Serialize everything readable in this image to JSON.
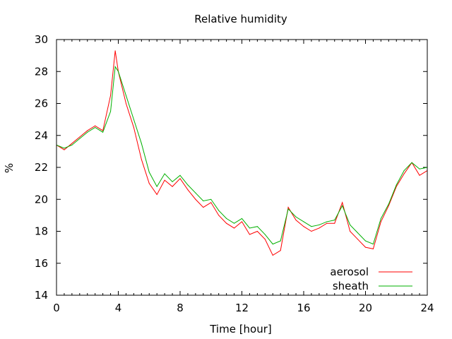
{
  "chart_data": {
    "type": "line",
    "title": "Relative humidity",
    "xlabel": "Time [hour]",
    "ylabel": "%",
    "xlim": [
      0,
      24
    ],
    "ylim": [
      14,
      30
    ],
    "xticks": [
      0,
      4,
      8,
      12,
      16,
      20,
      24
    ],
    "yticks": [
      14,
      16,
      18,
      20,
      22,
      24,
      26,
      28,
      30
    ],
    "grid": false,
    "legend": "bottom-right",
    "x": [
      0.0,
      0.5,
      1.0,
      1.5,
      2.0,
      2.5,
      3.0,
      3.5,
      3.8,
      4.0,
      4.5,
      5.0,
      5.5,
      6.0,
      6.5,
      7.0,
      7.5,
      8.0,
      8.5,
      9.0,
      9.5,
      10.0,
      10.5,
      11.0,
      11.5,
      12.0,
      12.5,
      13.0,
      13.5,
      14.0,
      14.5,
      15.0,
      15.5,
      16.0,
      16.5,
      17.0,
      17.5,
      18.0,
      18.5,
      19.0,
      19.5,
      20.0,
      20.5,
      21.0,
      21.5,
      22.0,
      22.5,
      23.0,
      23.5,
      24.0
    ],
    "series": [
      {
        "name": "aerosol",
        "color": "#ff0000",
        "values": [
          23.4,
          23.1,
          23.5,
          23.9,
          24.3,
          24.6,
          24.3,
          26.5,
          29.3,
          28.0,
          26.0,
          24.5,
          22.5,
          21.0,
          20.3,
          21.2,
          20.8,
          21.3,
          20.6,
          20.0,
          19.5,
          19.8,
          19.0,
          18.5,
          18.2,
          18.6,
          17.8,
          18.0,
          17.5,
          16.5,
          16.8,
          19.5,
          18.7,
          18.3,
          18.0,
          18.2,
          18.5,
          18.5,
          19.8,
          18.0,
          17.5,
          17.0,
          16.9,
          18.6,
          19.6,
          20.8,
          21.6,
          22.3,
          21.5,
          21.8
        ]
      },
      {
        "name": "sheath",
        "color": "#00b000",
        "values": [
          23.4,
          23.2,
          23.4,
          23.8,
          24.2,
          24.5,
          24.2,
          25.5,
          28.3,
          28.0,
          26.5,
          25.0,
          23.5,
          21.7,
          20.8,
          21.6,
          21.1,
          21.5,
          20.9,
          20.4,
          19.9,
          20.0,
          19.3,
          18.8,
          18.5,
          18.8,
          18.2,
          18.3,
          17.8,
          17.2,
          17.4,
          19.4,
          18.9,
          18.6,
          18.3,
          18.4,
          18.6,
          18.7,
          19.6,
          18.4,
          17.9,
          17.4,
          17.2,
          18.8,
          19.7,
          20.9,
          21.8,
          22.3,
          21.9,
          22.0
        ]
      }
    ]
  }
}
